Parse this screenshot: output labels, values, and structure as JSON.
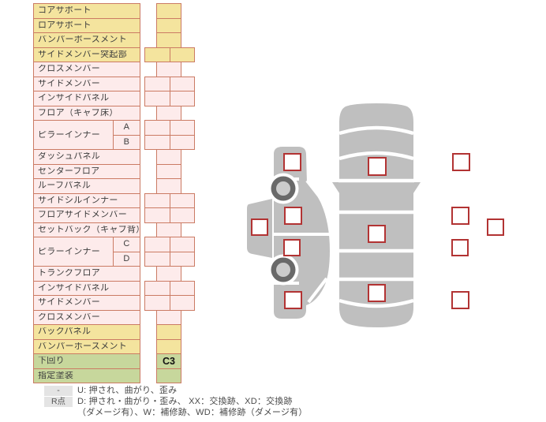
{
  "colors": {
    "yellow": "#f4e49e",
    "pink": "#fdebeb",
    "green": "#c7d79c",
    "border": "#cb7b64",
    "marker": "#b23333",
    "body_gray": "#bfbfbf",
    "wheel_dark": "#696969",
    "wheel_light": "#cbcbcb",
    "legendbox": "#e4e4e4"
  },
  "parts_table": {
    "rows": [
      {
        "label": "コアサポート",
        "color": "yellow",
        "cell": "single",
        "value": ""
      },
      {
        "label": "ロアサポート",
        "color": "yellow",
        "cell": "single",
        "value": ""
      },
      {
        "label": "バンパーボースメント",
        "color": "yellow",
        "cell": "single",
        "value": ""
      },
      {
        "label": "サイドメンバー突起部",
        "color": "yellow",
        "cell": "pair",
        "value": ""
      },
      {
        "label": "クロスメンバー",
        "color": "pink",
        "cell": "single",
        "value": ""
      },
      {
        "label": "サイドメンバー",
        "color": "pink",
        "cell": "pair",
        "value": ""
      },
      {
        "label": "インサイドパネル",
        "color": "pink",
        "cell": "pair",
        "value": ""
      },
      {
        "label": "フロア（キャブ床）",
        "color": "pink",
        "cell": "single",
        "value": ""
      },
      {
        "label": "ピラーインナー",
        "subs": [
          "A",
          "B"
        ],
        "color": "pink",
        "cell": "pair",
        "value": ""
      },
      {
        "label": "ダッシュパネル",
        "color": "pink",
        "cell": "single",
        "value": ""
      },
      {
        "label": "センターフロア",
        "color": "pink",
        "cell": "single",
        "value": ""
      },
      {
        "label": "ルーフパネル",
        "color": "pink",
        "cell": "single",
        "value": ""
      },
      {
        "label": "サイドシルインナー",
        "color": "pink",
        "cell": "pair",
        "value": ""
      },
      {
        "label": "フロアサイドメンバー",
        "color": "pink",
        "cell": "pair",
        "value": ""
      },
      {
        "label": "セットバック（キャブ背）",
        "color": "pink",
        "cell": "single",
        "value": ""
      },
      {
        "label": "ピラーインナー",
        "subs": [
          "C",
          "D"
        ],
        "color": "pink",
        "cell": "pair",
        "value": ""
      },
      {
        "label": "トランクフロア",
        "color": "pink",
        "cell": "single",
        "value": ""
      },
      {
        "label": "インサイドパネル",
        "color": "pink",
        "cell": "pair",
        "value": ""
      },
      {
        "label": "サイドメンバー",
        "color": "pink",
        "cell": "pair",
        "value": ""
      },
      {
        "label": "クロスメンバー",
        "color": "pink",
        "cell": "single",
        "value": ""
      },
      {
        "label": "バックパネル",
        "color": "yellow",
        "cell": "single",
        "value": ""
      },
      {
        "label": "バンパーホースメント",
        "color": "yellow",
        "cell": "single",
        "value": ""
      },
      {
        "label": "下回り",
        "color": "green",
        "cell": "single",
        "value": "C3"
      },
      {
        "label": "指定塗装",
        "color": "green",
        "cell": "single",
        "value": ""
      }
    ]
  },
  "diagram": {
    "views": [
      "left-side-view",
      "top-view",
      "right-side-view"
    ],
    "markers": [
      "left-view-front-fender",
      "left-view-side-sill",
      "left-view-front-door",
      "left-view-rear-door",
      "left-view-rear-fender",
      "top-view-front",
      "top-view-roof",
      "top-view-rear",
      "right-view-front-fender",
      "right-view-front-door",
      "right-view-side-sill",
      "right-view-rear-door",
      "right-view-rear-fender"
    ]
  },
  "legend": {
    "items": [
      {
        "symbol": "-",
        "lines": [
          "U: 押され、曲がり、歪み"
        ]
      },
      {
        "symbol": "R点",
        "lines": [
          "D: 押され・曲がり・歪み、 XX：交換跡、XD：交換跡",
          "（ダメージ有）、W：補修跡、WD：補修跡（ダメージ有）"
        ]
      }
    ]
  }
}
